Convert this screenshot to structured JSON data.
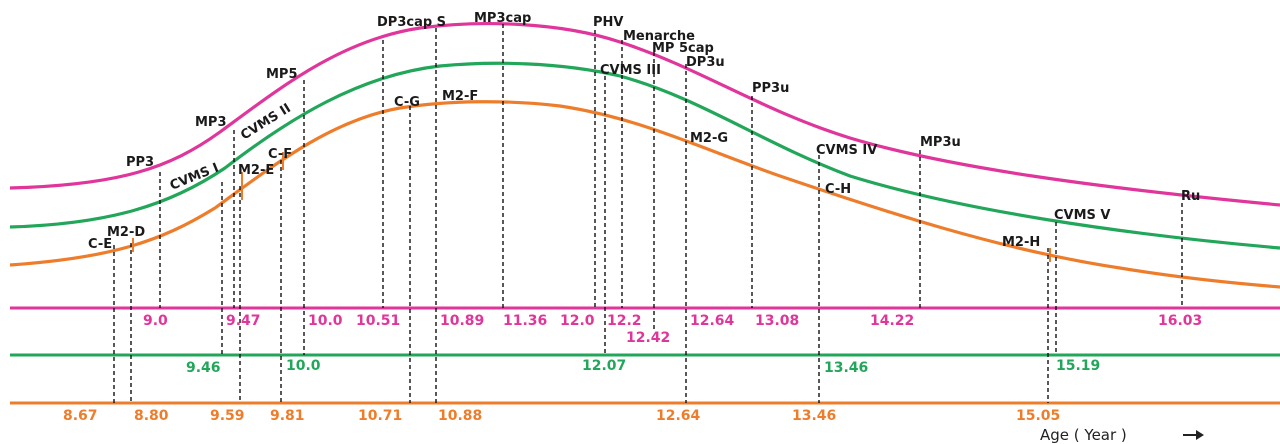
{
  "colors": {
    "pink": "#e0359a",
    "green": "#22a65a",
    "orange": "#ee7d2b"
  },
  "stage_labels": {
    "pp3": "PP3",
    "mp3": "MP3",
    "mp5": "MP5",
    "dp3caps": "DP3cap S",
    "mp3cap": "MP3cap",
    "phv": "PHV",
    "menarche": "Menarche",
    "mp5cap": "MP 5cap",
    "dp3u": "DP3u",
    "pp3u": "PP3u",
    "mp3u": "MP3u",
    "ru": "Ru",
    "cvms1": "CVMS I",
    "cvms2": "CVMS II",
    "cvms3": "CVMS III",
    "cvms4": "CVMS IV",
    "cvms5": "CVMS V",
    "ce": "C-E",
    "m2d": "M2-D",
    "m2e": "M2-E",
    "cf": "C-F",
    "cg": "C-G",
    "m2f": "M2-F",
    "m2g": "M2-G",
    "ch": "C-H",
    "m2h": "M2-H"
  },
  "pink_ages": [
    "9.0",
    "9.47",
    "10.0",
    "10.51",
    "10.89",
    "11.36",
    "12.0",
    "12.2",
    "12.42",
    "12.64",
    "13.08",
    "14.22",
    "16.03"
  ],
  "green_ages": [
    "9.46",
    "10.0",
    "12.07",
    "13.46",
    "15.19"
  ],
  "orange_ages": [
    "8.67",
    "8.80",
    "9.59",
    "9.81",
    "10.71",
    "10.88",
    "12.64",
    "13.46",
    "15.05"
  ],
  "axis_label": "Age ( Year )"
}
